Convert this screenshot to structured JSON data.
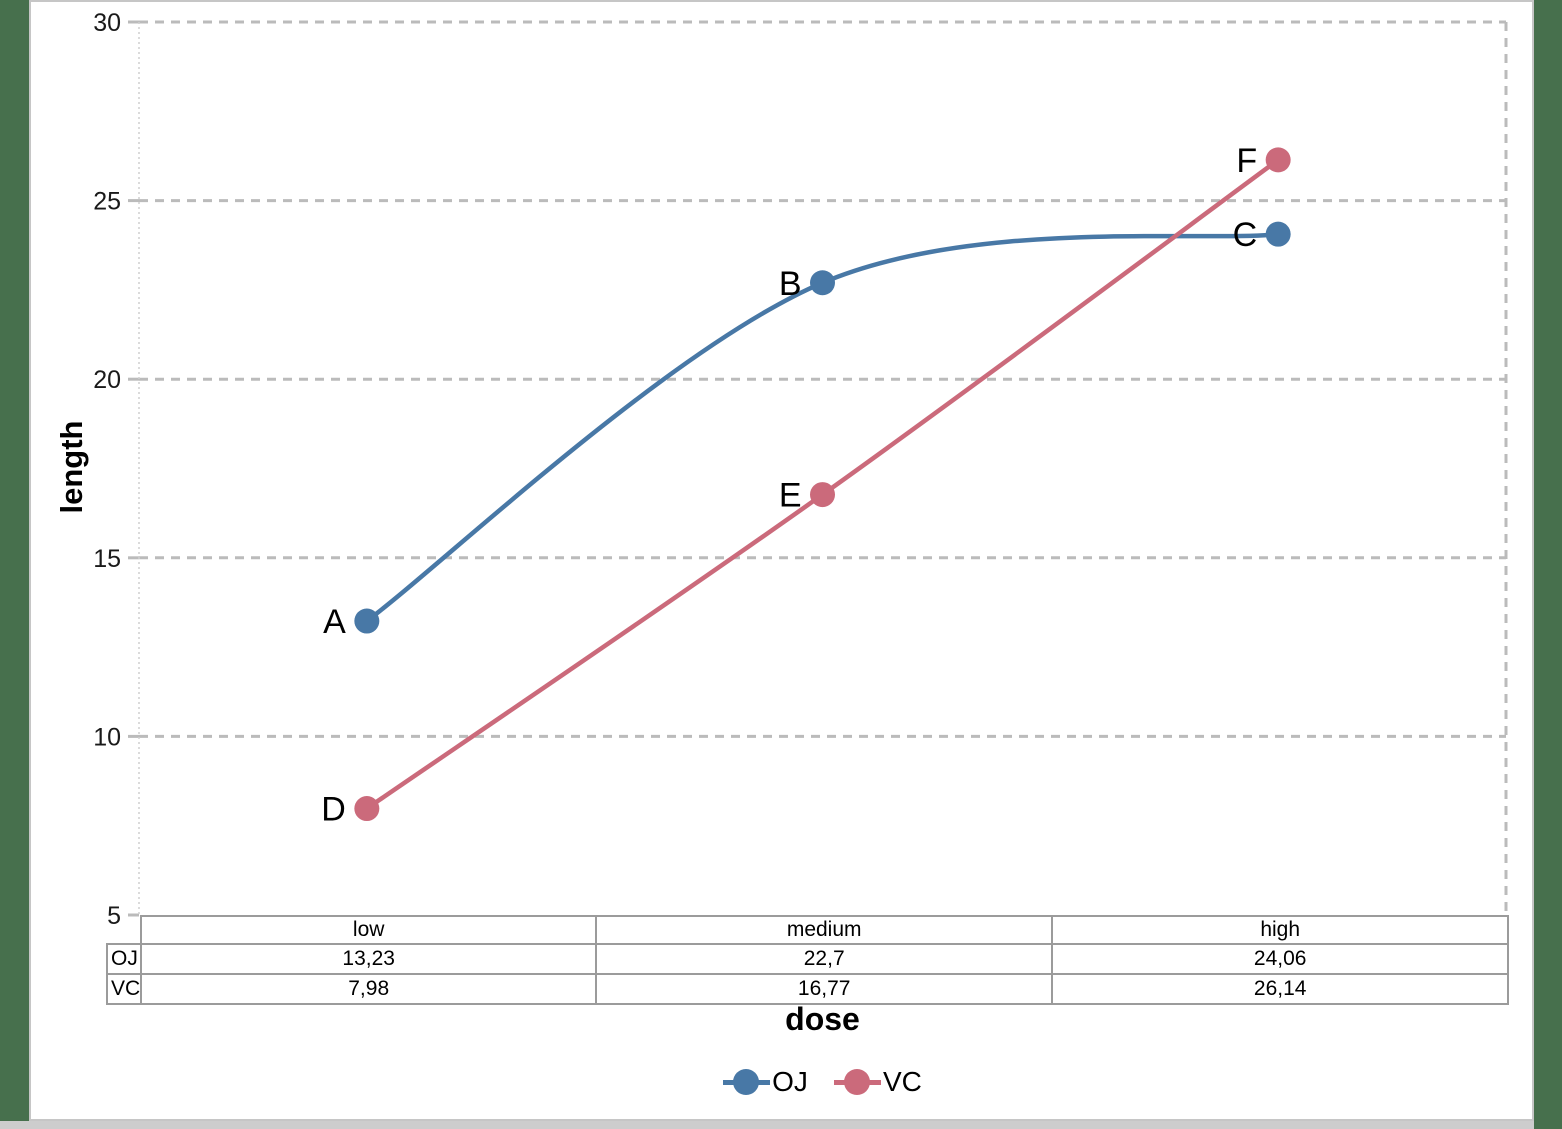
{
  "frame": {
    "background_green": "#47704D",
    "panel_background": "#FFFFFF",
    "frame_gray": "#C6C6C6"
  },
  "axis": {
    "xlabel": "dose",
    "ylabel": "length"
  },
  "chart_data": {
    "type": "line",
    "categories": [
      "low",
      "medium",
      "high"
    ],
    "series": [
      {
        "name": "OJ",
        "values": [
          13.23,
          22.7,
          24.06
        ],
        "color": "#4878A6",
        "point_labels": [
          "A",
          "B",
          "C"
        ],
        "smooth": true
      },
      {
        "name": "VC",
        "values": [
          7.98,
          16.77,
          26.14
        ],
        "color": "#CB6A7B",
        "point_labels": [
          "D",
          "E",
          "F"
        ],
        "smooth": true
      }
    ],
    "title": "",
    "xlabel": "dose",
    "ylabel": "length",
    "ylim": [
      5,
      30
    ],
    "yticks": [
      30,
      25,
      20,
      15,
      10,
      5
    ],
    "grid": "horizontal-dashed",
    "gridline_color": "#BBBBBB",
    "legend_position": "bottom"
  },
  "table": {
    "headers": [
      "low",
      "medium",
      "high"
    ],
    "rows": [
      {
        "label": "OJ",
        "values": [
          "13,23",
          "22,7",
          "24,06"
        ]
      },
      {
        "label": "VC",
        "values": [
          "7,98",
          "16,77",
          "26,14"
        ]
      }
    ]
  },
  "legend": {
    "items": [
      {
        "label": "OJ",
        "color": "#4878A6"
      },
      {
        "label": "VC",
        "color": "#CB6A7B"
      }
    ]
  }
}
